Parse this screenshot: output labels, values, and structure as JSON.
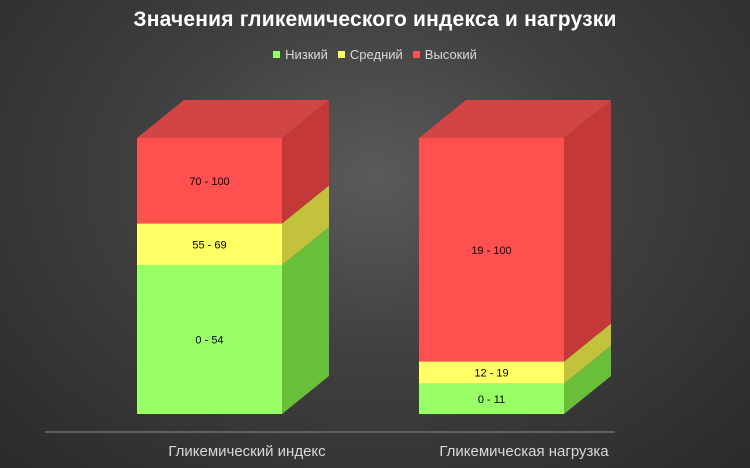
{
  "chart_data": {
    "type": "bar",
    "stacked": true,
    "three_d": true,
    "title": "Значения гликемического индекса и нагрузки",
    "categories": [
      "Гликемический индекс",
      "Гликемическая нагрузка"
    ],
    "series": [
      {
        "name": "Низкий",
        "color": "#99ff66",
        "side_color": "#6abf3a",
        "values": [
          54,
          11
        ],
        "labels": [
          "0 - 54",
          "0 - 11"
        ]
      },
      {
        "name": "Средний",
        "color": "#ffff66",
        "side_color": "#c2c23c",
        "values": [
          15,
          8
        ],
        "labels": [
          "55 - 69",
          "12 - 19"
        ]
      },
      {
        "name": "Высокий",
        "color": "#ff5050",
        "side_color": "#c43838",
        "values": [
          31,
          81
        ],
        "labels": [
          "70 - 100",
          "19 - 100"
        ]
      }
    ],
    "ylim": [
      0,
      100
    ],
    "legend_position": "top",
    "grid": false
  }
}
